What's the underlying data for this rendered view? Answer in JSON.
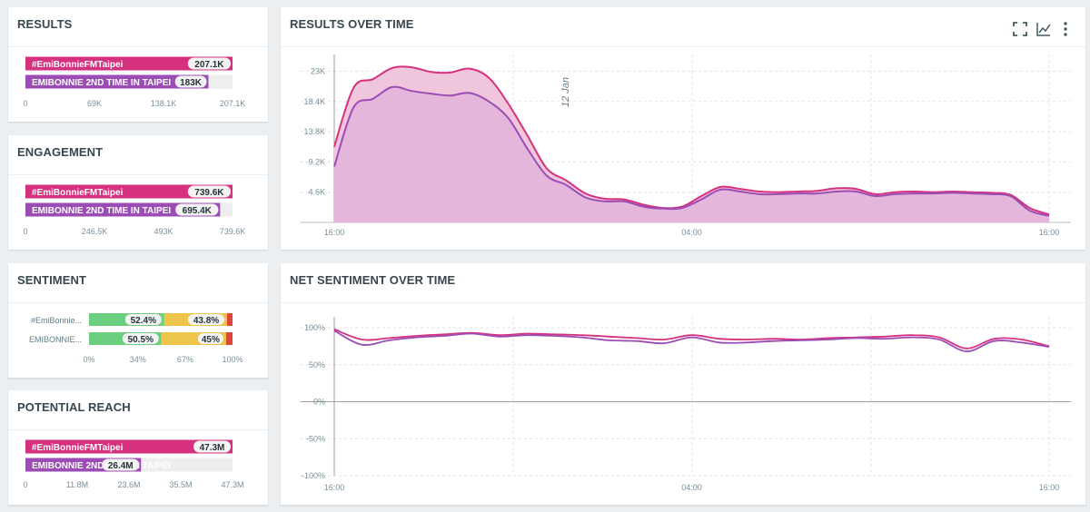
{
  "colors": {
    "pink": "#d6317e",
    "purple": "#9b4db5",
    "green": "#6ccf7f",
    "yellow": "#edc54a",
    "red": "#e0453a",
    "fill_pink": "#f0c6dc",
    "fill_purple": "#e2b3da"
  },
  "results": {
    "title": "RESULTS",
    "chart_data": {
      "type": "bar",
      "orientation": "horizontal",
      "categories": [
        "#EmiBonnieFMTaipei",
        "EMIBONNIE 2ND TIME IN TAIPEI"
      ],
      "values": [
        207100,
        183000
      ],
      "value_labels": [
        "207.1K",
        "183K"
      ],
      "xlim": [
        0,
        207100
      ],
      "ticks": [
        "0",
        "69K",
        "138.1K",
        "207.1K"
      ]
    }
  },
  "engagement": {
    "title": "ENGAGEMENT",
    "chart_data": {
      "type": "bar",
      "orientation": "horizontal",
      "categories": [
        "#EmiBonnieFMTaipei",
        "EMIBONNIE 2ND TIME IN TAIPEI"
      ],
      "values": [
        739600,
        695400
      ],
      "value_labels": [
        "739.6K",
        "695.4K"
      ],
      "xlim": [
        0,
        739600
      ],
      "ticks": [
        "0",
        "246.5K",
        "493K",
        "739.6K"
      ]
    }
  },
  "sentiment": {
    "title": "SENTIMENT",
    "chart_data": {
      "type": "bar",
      "stacked": true,
      "orientation": "horizontal",
      "categories": [
        "#EmiBonnie...",
        "EMIBONNIE..."
      ],
      "series": [
        {
          "name": "positive",
          "values": [
            52.4,
            50.5
          ],
          "labels": [
            "52.4%",
            "50.5%"
          ]
        },
        {
          "name": "neutral",
          "values": [
            43.8,
            45
          ],
          "labels": [
            "43.8%",
            "45%"
          ]
        },
        {
          "name": "negative",
          "values": [
            3.8,
            4.5
          ],
          "labels": [
            "",
            ""
          ]
        }
      ],
      "xlim": [
        0,
        100
      ],
      "ticks": [
        "0%",
        "34%",
        "67%",
        "100%"
      ]
    }
  },
  "reach": {
    "title": "POTENTIAL REACH",
    "chart_data": {
      "type": "bar",
      "orientation": "horizontal",
      "categories": [
        "#EmiBonnieFMTaipei",
        "EMIBONNIE 2ND TIME IN TAIPEI"
      ],
      "values": [
        47300000,
        26400000
      ],
      "value_labels": [
        "47.3M",
        "26.4M"
      ],
      "xlim": [
        0,
        47300000
      ],
      "ticks": [
        "0",
        "11.8M",
        "23.6M",
        "35.5M",
        "47.3M"
      ]
    }
  },
  "results_over_time": {
    "title": "RESULTS OVER TIME",
    "chart_data": {
      "type": "area",
      "x_ticks": [
        "16:00",
        "04:00",
        "16:00"
      ],
      "y_ticks": [
        "4.6K",
        "9.2K",
        "13.8K",
        "18.4K",
        "23K"
      ],
      "ylim": [
        0,
        25000
      ],
      "annotation": "12 Jan",
      "series": [
        {
          "name": "#EmiBonnieFMTaipei",
          "values": [
            11500,
            20500,
            21800,
            23500,
            23600,
            22900,
            22800,
            23400,
            22000,
            18100,
            13200,
            8200,
            6400,
            4400,
            3600,
            3500,
            2700,
            2200,
            2400,
            4000,
            5400,
            5100,
            4700,
            4600,
            4700,
            4800,
            5200,
            5100,
            4300,
            4600,
            4700,
            4600,
            4700,
            4600,
            4500,
            4200,
            2200,
            1200
          ]
        },
        {
          "name": "EMIBONNIE 2ND TIME IN TAIPEI",
          "values": [
            8500,
            17500,
            18800,
            20600,
            20000,
            19600,
            19300,
            19700,
            18400,
            15900,
            11200,
            7100,
            5700,
            3800,
            3200,
            3200,
            2400,
            2100,
            2200,
            3500,
            5000,
            4700,
            4300,
            4300,
            4400,
            4400,
            4700,
            4700,
            4000,
            4300,
            4400,
            4400,
            4500,
            4400,
            4300,
            4000,
            1800,
            1000
          ]
        }
      ]
    }
  },
  "net_sentiment": {
    "title": "NET SENTIMENT OVER TIME",
    "chart_data": {
      "type": "line",
      "x_ticks": [
        "16:00",
        "04:00",
        "16:00"
      ],
      "y_ticks": [
        "100%",
        "50%",
        "0%",
        "-50%",
        "-100%"
      ],
      "ylim": [
        -100,
        100
      ],
      "series": [
        {
          "name": "#EmiBonnieFMTaipei",
          "values": [
            98,
            84,
            86,
            89,
            91,
            93,
            90,
            92,
            91,
            90,
            88,
            86,
            84,
            90,
            85,
            84,
            85,
            84,
            86,
            87,
            88,
            90,
            87,
            72,
            85,
            84,
            75
          ]
        },
        {
          "name": "EMIBONNIE 2ND TIME IN TAIPEI",
          "values": [
            96,
            77,
            83,
            87,
            89,
            92,
            88,
            90,
            89,
            87,
            83,
            82,
            79,
            87,
            80,
            80,
            82,
            83,
            84,
            86,
            85,
            87,
            84,
            68,
            82,
            80,
            74
          ]
        }
      ]
    }
  },
  "toolbar": {
    "expand_icon": "expand-icon",
    "chart_icon": "line-chart-icon",
    "more_icon": "more-vertical-icon"
  }
}
